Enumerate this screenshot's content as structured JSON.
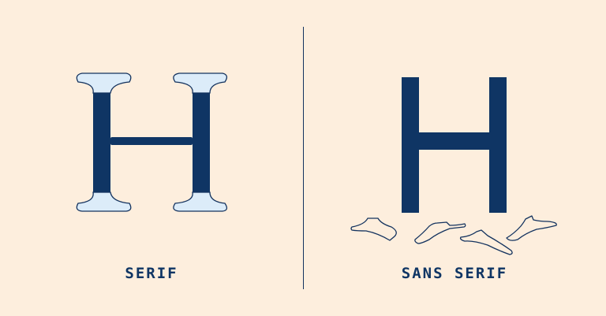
{
  "colors": {
    "background": "#fdeedd",
    "letter": "#0f3564",
    "serif_fill": "#dcecf9",
    "outline": "#13325e"
  },
  "left": {
    "label": "SERIF",
    "icon": "serif-letter-h-icon"
  },
  "right": {
    "label": "SANS SERIF",
    "icon": "sans-serif-letter-h-icon",
    "detached_serifs_icon": "fallen-serifs-icon"
  }
}
